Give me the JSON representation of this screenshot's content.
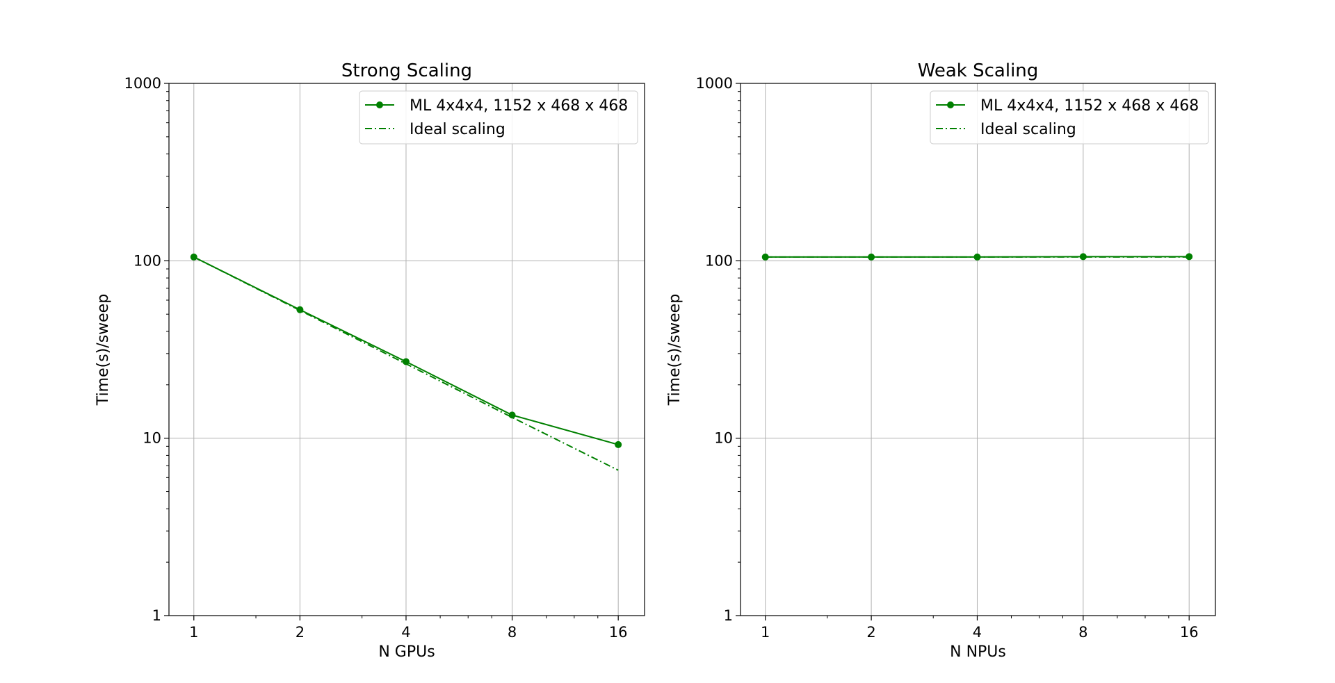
{
  "chart_data": [
    {
      "type": "line",
      "title": "Strong Scaling",
      "xlabel": "N GPUs",
      "ylabel": "Time(s)/sweep",
      "x_scale": "log2",
      "y_scale": "log10",
      "xlim": [
        0.85,
        19
      ],
      "ylim": [
        1,
        1000
      ],
      "x_ticks": [
        1,
        2,
        4,
        8,
        16
      ],
      "x_tick_labels": [
        "1",
        "2",
        "4",
        "8",
        "16"
      ],
      "y_ticks": [
        1,
        10,
        100,
        1000
      ],
      "y_tick_labels": [
        "1",
        "10",
        "100",
        "1000"
      ],
      "grid": true,
      "legend_position": "top-right",
      "series": [
        {
          "name": "ML 4x4x4, 1152 x 468 x 468",
          "style": "solid-marker",
          "color": "#008000",
          "x": [
            1,
            2,
            4,
            8,
            16
          ],
          "y": [
            105,
            53,
            27,
            13.5,
            9.2
          ]
        },
        {
          "name": "Ideal scaling",
          "style": "dashdot",
          "color": "#008000",
          "x": [
            1,
            2,
            4,
            8,
            16
          ],
          "y": [
            105,
            52.5,
            26.25,
            13.1,
            6.6
          ]
        }
      ]
    },
    {
      "type": "line",
      "title": "Weak Scaling",
      "xlabel": "N NPUs",
      "ylabel": "Time(s)/sweep",
      "x_scale": "log2",
      "y_scale": "log10",
      "xlim": [
        0.85,
        19
      ],
      "ylim": [
        1,
        1000
      ],
      "x_ticks": [
        1,
        2,
        4,
        8,
        16
      ],
      "x_tick_labels": [
        "1",
        "2",
        "4",
        "8",
        "16"
      ],
      "y_ticks": [
        1,
        10,
        100,
        1000
      ],
      "y_tick_labels": [
        "1",
        "10",
        "100",
        "1000"
      ],
      "grid": true,
      "legend_position": "top-right",
      "series": [
        {
          "name": "ML 4x4x4, 1152 x 468 x 468",
          "style": "solid-marker",
          "color": "#008000",
          "x": [
            1,
            2,
            4,
            8,
            16
          ],
          "y": [
            105,
            105,
            105,
            105.5,
            105.5
          ]
        },
        {
          "name": "Ideal scaling",
          "style": "dashdot",
          "color": "#008000",
          "x": [
            1,
            2,
            4,
            8,
            16
          ],
          "y": [
            105,
            105,
            105,
            105,
            105
          ]
        }
      ]
    }
  ]
}
